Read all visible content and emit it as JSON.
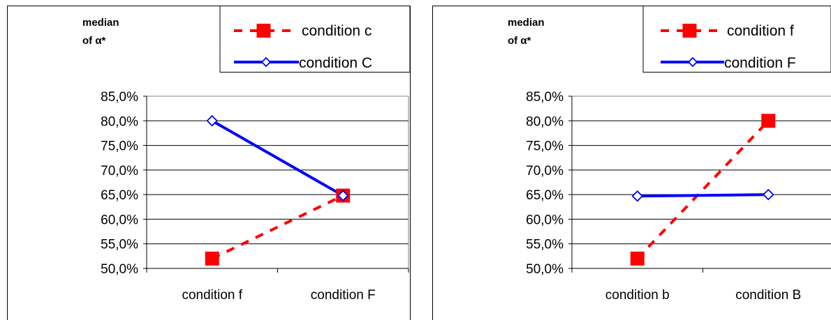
{
  "charts": [
    {
      "ylabel_line1": "median",
      "ylabel_line2": "of α*",
      "legend": {
        "series_0": "condition c",
        "series_1": "condition C"
      },
      "tick_labels": [
        "85,0%",
        "80,0%",
        "75,0%",
        "70,0%",
        "65,0%",
        "60,0%",
        "55,0%",
        "50,0%"
      ],
      "category_labels": [
        "condition f",
        "condition F"
      ]
    },
    {
      "ylabel_line1": "median",
      "ylabel_line2": "of α*",
      "legend": {
        "series_0": "condition f",
        "series_1": "condition F"
      },
      "tick_labels": [
        "85,0%",
        "80,0%",
        "75,0%",
        "70,0%",
        "65,0%",
        "60,0%",
        "55,0%",
        "50,0%"
      ],
      "category_labels": [
        "condition b",
        "condition B"
      ]
    }
  ],
  "chart_data": [
    {
      "type": "line",
      "categories": [
        "condition f",
        "condition F"
      ],
      "series": [
        {
          "name": "condition c",
          "values": [
            52.0,
            64.8
          ],
          "color": "#ff0000",
          "style": "dashed",
          "marker": "filled-square"
        },
        {
          "name": "condition C",
          "values": [
            80.0,
            64.8
          ],
          "color": "#0000ff",
          "style": "solid",
          "marker": "open-diamond"
        }
      ],
      "ylabel": "median of α*",
      "ylim": [
        50,
        85
      ],
      "y_ticks": [
        50,
        55,
        60,
        65,
        70,
        75,
        80,
        85
      ],
      "grid": true,
      "legend_position": "top-right"
    },
    {
      "type": "line",
      "categories": [
        "condition b",
        "condition B"
      ],
      "series": [
        {
          "name": "condition f",
          "values": [
            52.0,
            80.0
          ],
          "color": "#ff0000",
          "style": "dashed",
          "marker": "filled-square"
        },
        {
          "name": "condition F",
          "values": [
            64.7,
            65.0
          ],
          "color": "#0000ff",
          "style": "solid",
          "marker": "open-diamond"
        }
      ],
      "ylabel": "median of α*",
      "ylim": [
        50,
        85
      ],
      "y_ticks": [
        50,
        55,
        60,
        65,
        70,
        75,
        80,
        85
      ],
      "grid": true,
      "legend_position": "top-right"
    }
  ]
}
